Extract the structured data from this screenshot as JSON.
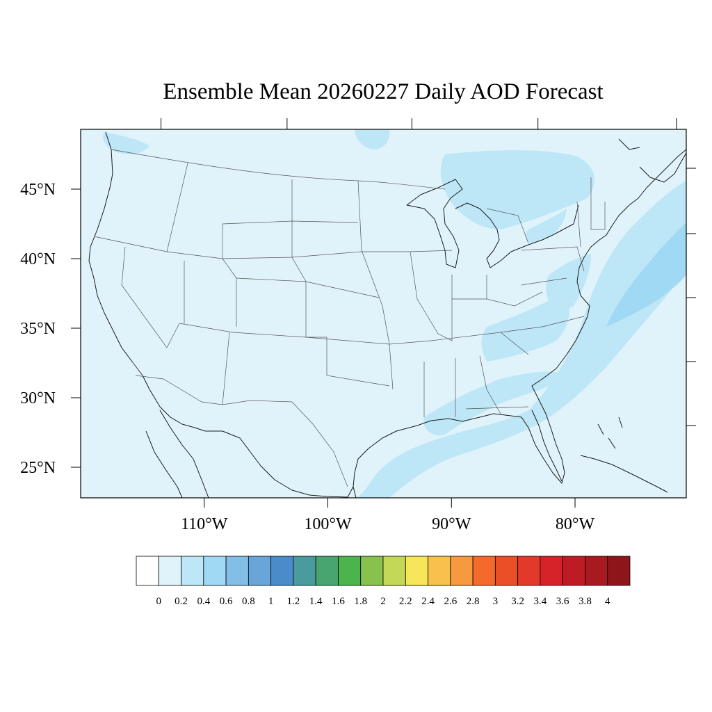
{
  "title": "Ensemble Mean 20260227 Daily AOD Forecast",
  "map": {
    "region": "CONUS",
    "lon_range": [
      -120,
      -71
    ],
    "lat_range": [
      22.8,
      49.3
    ],
    "lon_ticks": [
      {
        "lon": -110,
        "label": "110°W"
      },
      {
        "lon": -100,
        "label": "100°W"
      },
      {
        "lon": -90,
        "label": "90°W"
      },
      {
        "lon": -80,
        "label": "80°W"
      }
    ],
    "lat_ticks": [
      {
        "lat": 45,
        "label": "45°N"
      },
      {
        "lat": 40,
        "label": "40°N"
      },
      {
        "lat": 35,
        "label": "35°N"
      },
      {
        "lat": 30,
        "label": "30°N"
      },
      {
        "lat": 25,
        "label": "25°N"
      }
    ],
    "background_color": "#e0f3fb"
  },
  "colorbar": {
    "colors": [
      "#ffffff",
      "#e0f3fb",
      "#bde6f7",
      "#9fd9f4",
      "#82bee6",
      "#68a6da",
      "#4a8bc9",
      "#4b9a9e",
      "#48a56f",
      "#4bb44a",
      "#86c24c",
      "#c4d857",
      "#f8e65a",
      "#f8c14b",
      "#f6993f",
      "#f36a2c",
      "#ea4f28",
      "#e13a2a",
      "#d62229",
      "#bf1b24",
      "#a81a20",
      "#8e1519"
    ],
    "labels": [
      "0",
      "0.2",
      "0.4",
      "0.6",
      "0.8",
      "1",
      "1.2",
      "1.4",
      "1.6",
      "1.8",
      "2",
      "2.2",
      "2.4",
      "2.6",
      "2.8",
      "3",
      "3.2",
      "3.4",
      "3.6",
      "3.8",
      "4"
    ]
  }
}
